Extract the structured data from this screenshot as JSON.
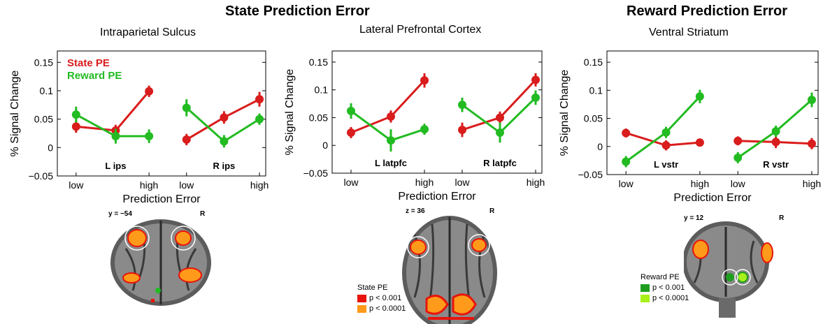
{
  "headers": {
    "state": "State Prediction Error",
    "reward": "Reward Prediction Error"
  },
  "colors": {
    "state_pe": "#d91c1c",
    "reward_pe": "#22bb22",
    "sig_red": "#e8140c",
    "sig_orange": "#ff9a1a",
    "sig_dkgreen": "#1e9e1e",
    "sig_ltgreen": "#a8f01a"
  },
  "chart_data": [
    {
      "type": "line",
      "title": "Intraparietal Sulcus",
      "xlabel": "Prediction Error",
      "ylabel": "% Signal Change",
      "ylim": [
        -0.05,
        0.17
      ],
      "yticks": [
        "−0.05",
        "0",
        "0.05",
        "0.1",
        "0.15"
      ],
      "ytick_values": [
        -0.05,
        0,
        0.05,
        0.1,
        0.15
      ],
      "xtick_labels": [
        "low",
        "high",
        "low",
        "high"
      ],
      "groups": [
        {
          "label": "L ips",
          "x": [
            "low",
            "mid",
            "high"
          ]
        },
        {
          "label": "R ips",
          "x": [
            "low",
            "mid",
            "high"
          ]
        }
      ],
      "legend": [
        "State PE",
        "Reward PE"
      ],
      "series": [
        {
          "name": "State PE",
          "color": "#d91c1c",
          "groups": [
            [
              0.037,
              0.03,
              0.099
            ],
            [
              0.014,
              0.053,
              0.085
            ]
          ],
          "err": [
            [
              0.011,
              0.01,
              0.01
            ],
            [
              0.01,
              0.011,
              0.013
            ]
          ]
        },
        {
          "name": "Reward PE",
          "color": "#22bb22",
          "groups": [
            [
              0.058,
              0.02,
              0.02
            ],
            [
              0.07,
              0.011,
              0.05
            ]
          ],
          "err": [
            [
              0.014,
              0.013,
              0.012
            ],
            [
              0.015,
              0.011,
              0.01
            ]
          ]
        }
      ]
    },
    {
      "type": "line",
      "title": "Lateral Prefrontal Cortex",
      "xlabel": "Prediction Error",
      "ylabel": "% Signal Change",
      "ylim": [
        -0.05,
        0.17
      ],
      "yticks": [
        "−0.05",
        "0",
        "0.05",
        "0.1",
        "0.15"
      ],
      "ytick_values": [
        -0.05,
        0,
        0.05,
        0.1,
        0.15
      ],
      "xtick_labels": [
        "low",
        "high",
        "low",
        "high"
      ],
      "groups": [
        {
          "label": "L latpfc",
          "x": [
            "low",
            "mid",
            "high"
          ]
        },
        {
          "label": "R latpfc",
          "x": [
            "low",
            "mid",
            "high"
          ]
        }
      ],
      "legend": [],
      "series": [
        {
          "name": "State PE",
          "color": "#d91c1c",
          "groups": [
            [
              0.023,
              0.052,
              0.117
            ],
            [
              0.028,
              0.05,
              0.118
            ]
          ],
          "err": [
            [
              0.01,
              0.011,
              0.013
            ],
            [
              0.013,
              0.011,
              0.012
            ]
          ]
        },
        {
          "name": "Reward PE",
          "color": "#22bb22",
          "groups": [
            [
              0.062,
              0.009,
              0.029
            ],
            [
              0.073,
              0.023,
              0.086
            ]
          ],
          "err": [
            [
              0.014,
              0.02,
              0.01
            ],
            [
              0.013,
              0.018,
              0.013
            ]
          ]
        }
      ]
    },
    {
      "type": "line",
      "title": "Ventral Striatum",
      "xlabel": "Prediction Error",
      "ylabel": "% Signal Change",
      "ylim": [
        -0.05,
        0.17
      ],
      "yticks": [
        "−0.05",
        "0",
        "0.05",
        "0.1",
        "0.15"
      ],
      "ytick_values": [
        -0.05,
        0,
        0.05,
        0.1,
        0.15
      ],
      "xtick_labels": [
        "low",
        "high",
        "low",
        "high"
      ],
      "groups": [
        {
          "label": "L vstr",
          "x": [
            "low",
            "mid",
            "high"
          ]
        },
        {
          "label": "R vstr",
          "x": [
            "low",
            "mid",
            "high"
          ]
        }
      ],
      "legend": [],
      "series": [
        {
          "name": "State PE",
          "color": "#d91c1c",
          "groups": [
            [
              0.024,
              0.002,
              0.007
            ],
            [
              0.01,
              0.008,
              0.005
            ]
          ],
          "err": [
            [
              0.008,
              0.009,
              0.007
            ],
            [
              0.008,
              0.011,
              0.01
            ]
          ]
        },
        {
          "name": "Reward PE",
          "color": "#22bb22",
          "groups": [
            [
              -0.027,
              0.025,
              0.089
            ],
            [
              -0.02,
              0.027,
              0.083
            ]
          ],
          "err": [
            [
              0.01,
              0.01,
              0.012
            ],
            [
              0.01,
              0.01,
              0.013
            ]
          ]
        }
      ]
    }
  ],
  "brains": [
    {
      "coord": "y = −54",
      "side": "R"
    },
    {
      "coord": "z = 36",
      "side": "R"
    },
    {
      "coord": "y = 12",
      "side": "R"
    }
  ],
  "brain_legends": [
    {
      "title": "State PE",
      "items": [
        "p < 0.001",
        "p < 0.0001"
      ]
    },
    {
      "title": "Reward PE",
      "items": [
        "p < 0.001",
        "p < 0.0001"
      ]
    }
  ]
}
